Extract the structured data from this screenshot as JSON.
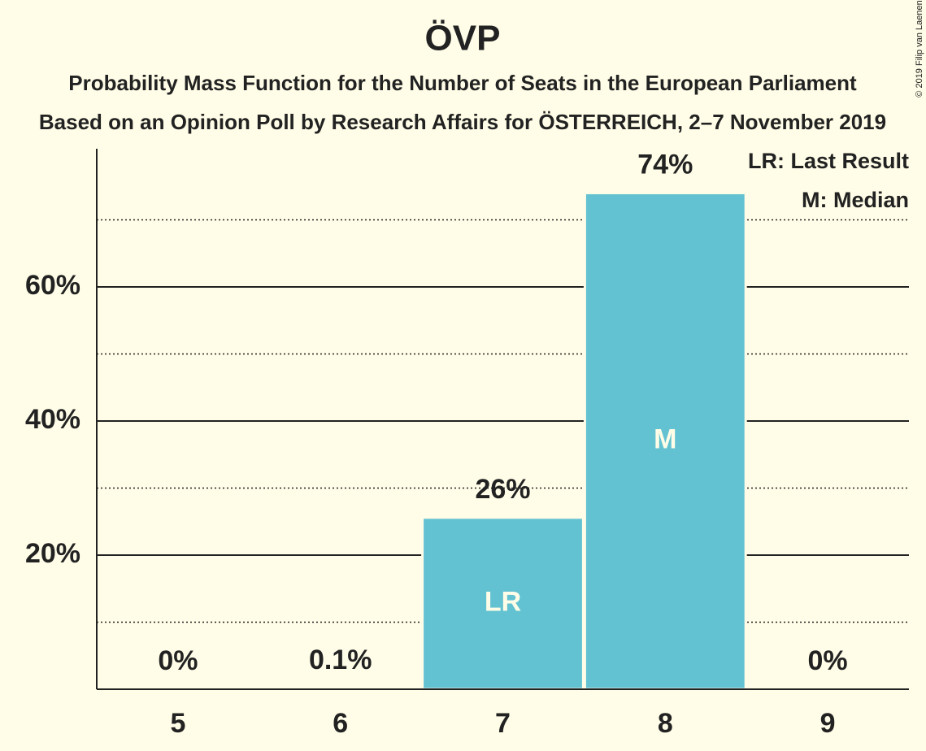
{
  "chart_data": {
    "type": "bar",
    "title": "ÖVP",
    "subtitle": [
      "Probability Mass Function for the Number of Seats in the European Parliament",
      "Based on an Opinion Poll by Research Affairs for ÖSTERREICH, 2–7 November 2019"
    ],
    "categories": [
      5,
      6,
      7,
      8,
      9
    ],
    "values": [
      0,
      0.1,
      25.6,
      74,
      0
    ],
    "value_labels": [
      "0%",
      "0.1%",
      "26%",
      "74%",
      "0%"
    ],
    "marker_labels": [
      null,
      null,
      "LR",
      "M",
      null
    ],
    "legend_notes": [
      "LR: Last Result",
      "M: Median"
    ],
    "copyright": "© 2019 Filip van Laenen",
    "color": "#63c2d2",
    "ylim": [
      0,
      80.6
    ],
    "yticks": [
      {
        "value": 20,
        "label": "20%"
      },
      {
        "value": 40,
        "label": "40%"
      },
      {
        "value": 60,
        "label": "60%"
      }
    ],
    "minor_yticks": [
      10,
      30,
      50,
      70
    ],
    "grid": true
  }
}
